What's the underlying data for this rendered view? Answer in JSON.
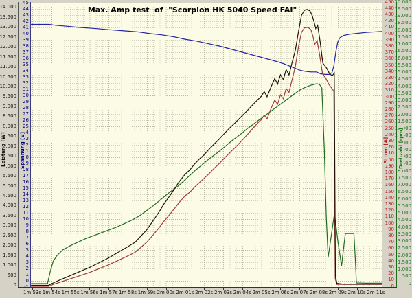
{
  "title": "Max. Amp test  of  \"Scorpion HK 5040 Speed FAI\"",
  "colors": {
    "window_background": "#d6d2c6",
    "plot_background": "#fbfbe6",
    "grid_minor": "#d2d2bd",
    "grid_major": "#b9b9a4",
    "leistung": "#1d1008",
    "spannung": "#2222aa",
    "strom": "#a33a3a",
    "drehzahl": "#1e6b1e"
  },
  "chart_data": {
    "type": "line",
    "title": "Max. Amp test  of  \"Scorpion HK 5040 Speed FAI\"",
    "grid": "dotted, minor every 1/3 s vertical and 1 unit horizontal",
    "legend_position": "none (axis labels colored per series)",
    "x_axis": {
      "unit": "time",
      "tick_labels": [
        "1m 53s",
        "1m 54s",
        "1m 55s",
        "1m 56s",
        "1m 57s",
        "1m 58s",
        "1m 59s",
        "2m 00s",
        "2m 01s",
        "2m 02s",
        "2m 03s",
        "2m 04s",
        "2m 05s",
        "2m 06s",
        "2m 07s",
        "2m 08s",
        "2m 09s",
        "2m 10s",
        "2m 11s"
      ],
      "tick_seconds": [
        113,
        114,
        115,
        116,
        117,
        118,
        119,
        120,
        121,
        122,
        123,
        124,
        125,
        126,
        127,
        128,
        129,
        130,
        131
      ],
      "range_seconds": [
        112.93,
        131.31
      ]
    },
    "axes": [
      {
        "id": "leistung",
        "label": "Leistung [W]",
        "color": "#111111",
        "side": "left-outer",
        "min": 0,
        "max": 14000,
        "step": 500,
        "thousands_dot": true
      },
      {
        "id": "spannung",
        "label": "Spannung [V]",
        "color": "#000080",
        "side": "left-inner",
        "min": -1,
        "max": 45,
        "step": 1,
        "thousands_dot": false
      },
      {
        "id": "strom",
        "label": "Strom [A]",
        "color": "#b22222",
        "side": "right-inner",
        "min": 0,
        "max": 450,
        "step": 10,
        "thousands_dot": false
      },
      {
        "id": "drehzahl",
        "label": "Drehzahl [rpm]",
        "color": "#1e7a1e",
        "side": "right-outer",
        "min": 0,
        "max": 20000,
        "step": 500,
        "thousands_dot": true
      }
    ],
    "series": [
      {
        "name": "Spannung",
        "axis": "spannung",
        "unit": "V",
        "color": "#2222aa",
        "points": [
          [
            112.93,
            41.5
          ],
          [
            113.9,
            41.5
          ],
          [
            114.2,
            41.35
          ],
          [
            114.8,
            41.2
          ],
          [
            115.5,
            41.0
          ],
          [
            116.2,
            40.85
          ],
          [
            117.0,
            40.65
          ],
          [
            117.8,
            40.45
          ],
          [
            118.5,
            40.3
          ],
          [
            119.2,
            40.0
          ],
          [
            119.8,
            39.8
          ],
          [
            120.4,
            39.5
          ],
          [
            121.0,
            39.1
          ],
          [
            121.6,
            38.8
          ],
          [
            122.2,
            38.4
          ],
          [
            122.8,
            38.0
          ],
          [
            123.4,
            37.5
          ],
          [
            124.0,
            37.0
          ],
          [
            124.6,
            36.5
          ],
          [
            125.2,
            36.0
          ],
          [
            125.8,
            35.5
          ],
          [
            126.2,
            35.1
          ],
          [
            126.6,
            34.6
          ],
          [
            127.0,
            34.1
          ],
          [
            127.3,
            33.9
          ],
          [
            127.6,
            33.8
          ],
          [
            127.9,
            33.8
          ],
          [
            128.1,
            33.5
          ],
          [
            128.35,
            33.4
          ],
          [
            128.55,
            33.4
          ],
          [
            128.7,
            33.7
          ],
          [
            128.8,
            34.8
          ],
          [
            128.9,
            37.0
          ],
          [
            129.0,
            38.6
          ],
          [
            129.1,
            39.3
          ],
          [
            129.3,
            39.7
          ],
          [
            129.6,
            39.9
          ],
          [
            130.0,
            40.05
          ],
          [
            130.5,
            40.2
          ],
          [
            131.0,
            40.3
          ],
          [
            131.31,
            40.35
          ]
        ]
      },
      {
        "name": "Strom",
        "axis": "strom",
        "unit": "A",
        "color": "#a33a3a",
        "points": [
          [
            112.93,
            0
          ],
          [
            113.85,
            0
          ],
          [
            114.1,
            3
          ],
          [
            114.5,
            7
          ],
          [
            115.0,
            12
          ],
          [
            115.5,
            17
          ],
          [
            116.0,
            22
          ],
          [
            116.5,
            28
          ],
          [
            117.0,
            34
          ],
          [
            117.5,
            41
          ],
          [
            118.0,
            48
          ],
          [
            118.4,
            54
          ],
          [
            118.7,
            62
          ],
          [
            119.0,
            70
          ],
          [
            119.35,
            82
          ],
          [
            119.65,
            93
          ],
          [
            119.9,
            103
          ],
          [
            120.15,
            112
          ],
          [
            120.45,
            123
          ],
          [
            120.7,
            133
          ],
          [
            121.0,
            143
          ],
          [
            121.25,
            149
          ],
          [
            121.5,
            157
          ],
          [
            121.75,
            164
          ],
          [
            122.0,
            171
          ],
          [
            122.25,
            178
          ],
          [
            122.5,
            186
          ],
          [
            122.75,
            193
          ],
          [
            123.0,
            201
          ],
          [
            123.3,
            210
          ],
          [
            123.6,
            219
          ],
          [
            123.9,
            228
          ],
          [
            124.2,
            238
          ],
          [
            124.5,
            248
          ],
          [
            124.8,
            258
          ],
          [
            125.0,
            264
          ],
          [
            125.15,
            271
          ],
          [
            125.3,
            265
          ],
          [
            125.5,
            281
          ],
          [
            125.7,
            295
          ],
          [
            125.85,
            288
          ],
          [
            126.0,
            303
          ],
          [
            126.15,
            297
          ],
          [
            126.3,
            313
          ],
          [
            126.45,
            307
          ],
          [
            126.6,
            326
          ],
          [
            126.78,
            348
          ],
          [
            126.95,
            380
          ],
          [
            127.1,
            402
          ],
          [
            127.25,
            409
          ],
          [
            127.45,
            410
          ],
          [
            127.6,
            406
          ],
          [
            127.7,
            396
          ],
          [
            127.8,
            383
          ],
          [
            127.92,
            389
          ],
          [
            128.05,
            367
          ],
          [
            128.2,
            337
          ],
          [
            128.4,
            328
          ],
          [
            128.55,
            319
          ],
          [
            128.7,
            313
          ],
          [
            128.8,
            309
          ],
          [
            128.87,
            12
          ],
          [
            128.95,
            3
          ],
          [
            129.3,
            3
          ],
          [
            130.0,
            3
          ],
          [
            131.31,
            3
          ]
        ]
      },
      {
        "name": "Leistung",
        "axis": "leistung",
        "unit": "W",
        "color": "#1d1008",
        "points": [
          [
            112.93,
            0
          ],
          [
            113.85,
            0
          ],
          [
            114.1,
            120
          ],
          [
            114.5,
            290
          ],
          [
            115.0,
            490
          ],
          [
            115.5,
            700
          ],
          [
            116.0,
            900
          ],
          [
            116.5,
            1140
          ],
          [
            117.0,
            1380
          ],
          [
            117.5,
            1660
          ],
          [
            118.0,
            1940
          ],
          [
            118.4,
            2180
          ],
          [
            118.7,
            2490
          ],
          [
            119.0,
            2800
          ],
          [
            119.35,
            3280
          ],
          [
            119.65,
            3710
          ],
          [
            119.9,
            4100
          ],
          [
            120.15,
            4440
          ],
          [
            120.45,
            4860
          ],
          [
            120.7,
            5230
          ],
          [
            121.0,
            5590
          ],
          [
            121.25,
            5810
          ],
          [
            121.5,
            6110
          ],
          [
            121.75,
            6360
          ],
          [
            122.0,
            6570
          ],
          [
            122.25,
            6850
          ],
          [
            122.5,
            7090
          ],
          [
            122.75,
            7330
          ],
          [
            123.0,
            7580
          ],
          [
            123.3,
            7890
          ],
          [
            123.6,
            8160
          ],
          [
            123.9,
            8450
          ],
          [
            124.2,
            8740
          ],
          [
            124.5,
            9050
          ],
          [
            124.8,
            9340
          ],
          [
            125.0,
            9530
          ],
          [
            125.15,
            9760
          ],
          [
            125.3,
            9500
          ],
          [
            125.5,
            9980
          ],
          [
            125.7,
            10420
          ],
          [
            125.85,
            10140
          ],
          [
            126.0,
            10610
          ],
          [
            126.15,
            10370
          ],
          [
            126.3,
            10870
          ],
          [
            126.45,
            10600
          ],
          [
            126.6,
            11190
          ],
          [
            126.78,
            11850
          ],
          [
            126.95,
            12800
          ],
          [
            127.1,
            13600
          ],
          [
            127.25,
            13850
          ],
          [
            127.4,
            13900
          ],
          [
            127.55,
            13820
          ],
          [
            127.65,
            13620
          ],
          [
            127.75,
            13320
          ],
          [
            127.85,
            12940
          ],
          [
            127.95,
            13100
          ],
          [
            128.08,
            12280
          ],
          [
            128.22,
            11200
          ],
          [
            128.42,
            10940
          ],
          [
            128.58,
            10650
          ],
          [
            128.72,
            10560
          ],
          [
            128.82,
            10700
          ],
          [
            128.88,
            440
          ],
          [
            128.96,
            100
          ],
          [
            129.3,
            60
          ],
          [
            130.0,
            60
          ],
          [
            131.31,
            60
          ]
        ]
      },
      {
        "name": "Drehzahl",
        "axis": "drehzahl",
        "unit": "rpm",
        "color": "#1e6b1e",
        "points": [
          [
            112.93,
            0
          ],
          [
            113.8,
            0
          ],
          [
            113.95,
            900
          ],
          [
            114.1,
            1600
          ],
          [
            114.3,
            2000
          ],
          [
            114.6,
            2400
          ],
          [
            115.0,
            2700
          ],
          [
            115.4,
            2950
          ],
          [
            115.8,
            3200
          ],
          [
            116.2,
            3400
          ],
          [
            116.6,
            3600
          ],
          [
            117.0,
            3800
          ],
          [
            117.4,
            4000
          ],
          [
            117.8,
            4250
          ],
          [
            118.2,
            4500
          ],
          [
            118.6,
            4800
          ],
          [
            119.0,
            5200
          ],
          [
            119.4,
            5600
          ],
          [
            119.8,
            6050
          ],
          [
            120.2,
            6500
          ],
          [
            120.7,
            7000
          ],
          [
            121.1,
            7500
          ],
          [
            121.5,
            8000
          ],
          [
            121.9,
            8450
          ],
          [
            122.3,
            8900
          ],
          [
            122.7,
            9300
          ],
          [
            123.1,
            9750
          ],
          [
            123.5,
            10200
          ],
          [
            123.9,
            10600
          ],
          [
            124.3,
            11050
          ],
          [
            124.7,
            11450
          ],
          [
            125.1,
            11850
          ],
          [
            125.5,
            12250
          ],
          [
            125.9,
            12650
          ],
          [
            126.3,
            13050
          ],
          [
            126.7,
            13450
          ],
          [
            127.0,
            13750
          ],
          [
            127.3,
            13950
          ],
          [
            127.6,
            14100
          ],
          [
            127.9,
            14200
          ],
          [
            128.05,
            14150
          ],
          [
            128.17,
            13900
          ],
          [
            128.3,
            9500
          ],
          [
            128.4,
            4800
          ],
          [
            128.5,
            1850
          ],
          [
            128.65,
            3300
          ],
          [
            128.83,
            5000
          ],
          [
            129.0,
            3100
          ],
          [
            129.2,
            1250
          ],
          [
            129.3,
            2400
          ],
          [
            129.4,
            3560
          ],
          [
            129.85,
            3560
          ],
          [
            129.93,
            1500
          ],
          [
            129.98,
            50
          ],
          [
            130.5,
            30
          ],
          [
            131.31,
            30
          ]
        ]
      }
    ]
  }
}
